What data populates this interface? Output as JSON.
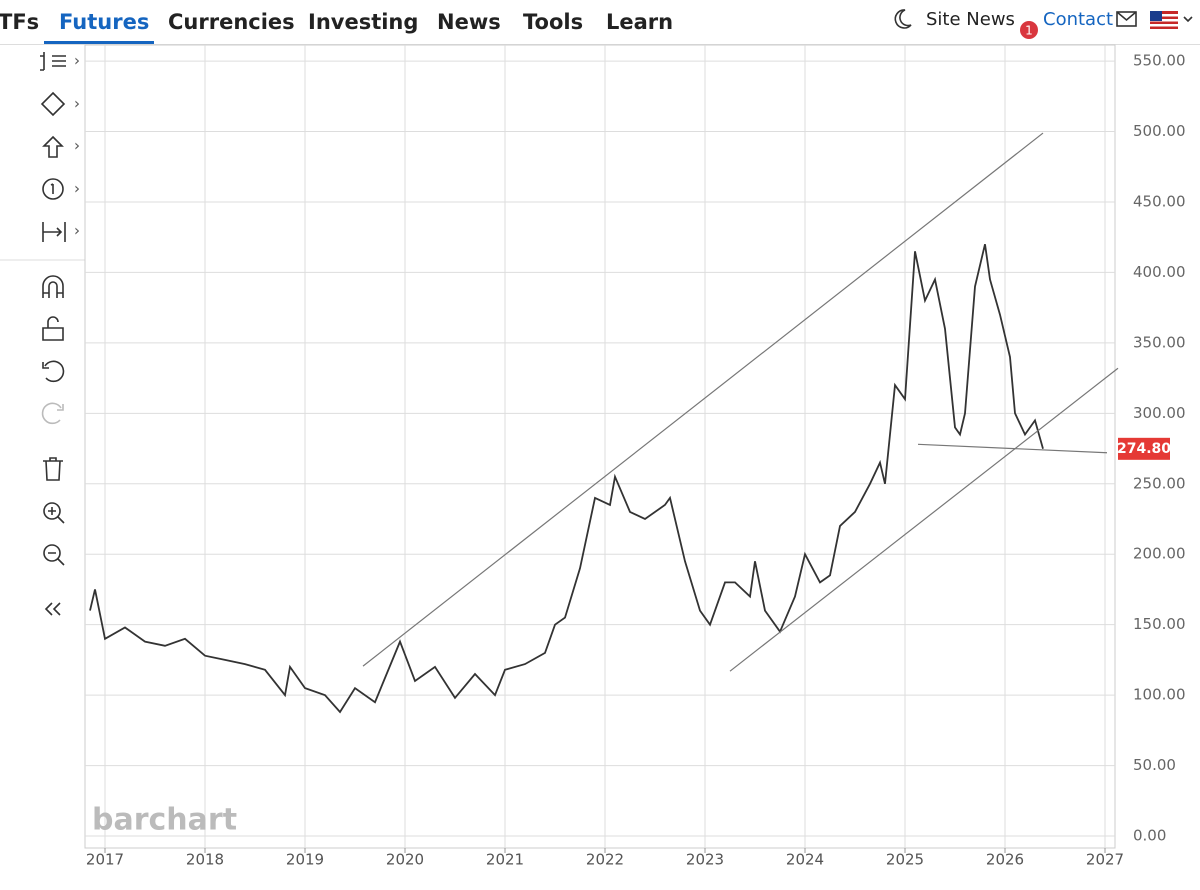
{
  "nav": {
    "items": [
      "TFs",
      "Futures",
      "Currencies",
      "Investing",
      "News",
      "Tools",
      "Learn"
    ],
    "active": 1,
    "site_news": "Site News",
    "badge": "1",
    "contact": "Contact"
  },
  "chart_data": {
    "type": "line",
    "watermark": "barchart",
    "series": [
      {
        "color": "#333333",
        "x": [
          2016.85,
          2016.9,
          2017.0,
          2017.2,
          2017.4,
          2017.6,
          2017.8,
          2018.0,
          2018.2,
          2018.4,
          2018.6,
          2018.8,
          2018.85,
          2019.0,
          2019.2,
          2019.35,
          2019.5,
          2019.7,
          2019.95,
          2020.1,
          2020.3,
          2020.5,
          2020.7,
          2020.9,
          2021.0,
          2021.2,
          2021.4,
          2021.5,
          2021.6,
          2021.75,
          2021.9,
          2022.05,
          2022.1,
          2022.25,
          2022.4,
          2022.6,
          2022.65,
          2022.8,
          2022.95,
          2023.05,
          2023.2,
          2023.3,
          2023.45,
          2023.5,
          2023.6,
          2023.75,
          2023.9,
          2024.0,
          2024.15,
          2024.25,
          2024.35,
          2024.5,
          2024.65,
          2024.75,
          2024.8,
          2024.9,
          2025.0,
          2025.1,
          2025.2,
          2025.3,
          2025.4,
          2025.5,
          2025.55,
          2025.6,
          2025.7,
          2025.8,
          2025.85,
          2025.95,
          2026.05,
          2026.1,
          2026.2,
          2026.3,
          2026.38
        ],
        "values": [
          160,
          175,
          140,
          148,
          138,
          135,
          140,
          128,
          125,
          122,
          118,
          100,
          120,
          105,
          100,
          88,
          105,
          95,
          138,
          110,
          120,
          98,
          115,
          100,
          118,
          122,
          130,
          150,
          155,
          190,
          240,
          235,
          255,
          230,
          225,
          235,
          240,
          195,
          160,
          150,
          180,
          180,
          170,
          195,
          160,
          145,
          170,
          200,
          180,
          185,
          220,
          230,
          250,
          265,
          250,
          320,
          310,
          415,
          380,
          395,
          360,
          290,
          285,
          300,
          390,
          420,
          395,
          370,
          340,
          300,
          285,
          295,
          274.8
        ]
      }
    ],
    "last_price": {
      "value": 274.8,
      "label": "274.80"
    },
    "trendlines": [
      {
        "x": [
          2019.58,
          2026.38
        ],
        "y": [
          120.6,
          498.9
        ]
      },
      {
        "x": [
          2023.25,
          2027.13
        ],
        "y": [
          117,
          332
        ]
      },
      {
        "x": [
          2025.13,
          2027.02
        ],
        "y": [
          278,
          272
        ]
      }
    ],
    "xlim": [
      2016.8,
      2027.1
    ],
    "ylim": [
      -8.5,
      561.4
    ],
    "xticks": [
      2017,
      2018,
      2019,
      2020,
      2021,
      2022,
      2023,
      2024,
      2025,
      2026,
      2027
    ],
    "yticks": [
      {
        "value": 0,
        "label": "0.00"
      },
      {
        "value": 50,
        "label": "50.00"
      },
      {
        "value": 100,
        "label": "100.00"
      },
      {
        "value": 150,
        "label": "150.00"
      },
      {
        "value": 200,
        "label": "200.00"
      },
      {
        "value": 250,
        "label": "250.00"
      },
      {
        "value": 300,
        "label": "300.00"
      },
      {
        "value": 350,
        "label": "350.00"
      },
      {
        "value": 400,
        "label": "400.00"
      },
      {
        "value": 450,
        "label": "450.00"
      },
      {
        "value": 500,
        "label": "500.00"
      },
      {
        "value": 550,
        "label": "550.00"
      }
    ],
    "grid": true
  }
}
